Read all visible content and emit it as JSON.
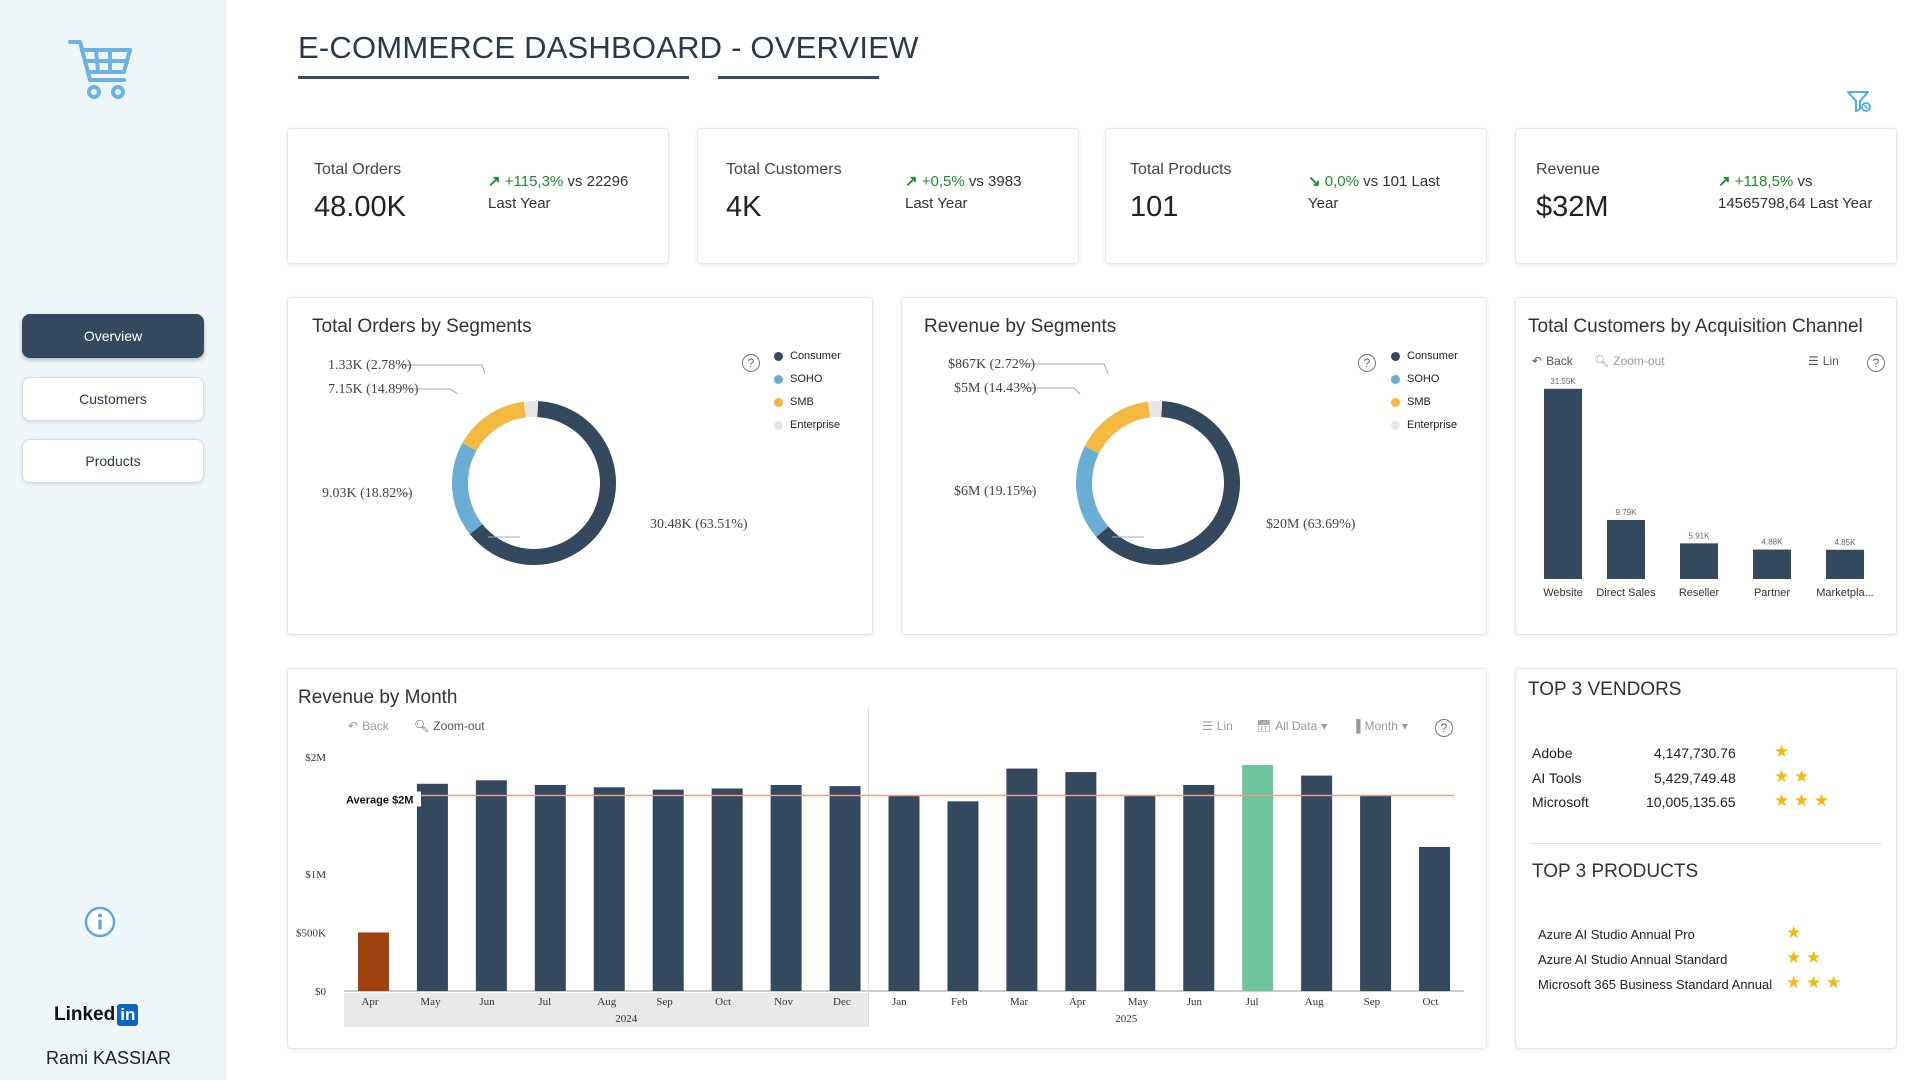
{
  "sidebar": {
    "nav": [
      {
        "label": "Overview",
        "active": true
      },
      {
        "label": "Customers",
        "active": false
      },
      {
        "label": "Products",
        "active": false
      }
    ],
    "linkedin_text": "Linked",
    "linkedin_in": "in",
    "author": "Rami KASSIAR"
  },
  "header": {
    "title": "E-COMMERCE DASHBOARD - OVERVIEW"
  },
  "kpis": [
    {
      "label": "Total Orders",
      "value": "48.00K",
      "delta": "+115,3%",
      "direction": "up",
      "compare_line1": "vs 22296",
      "compare_line2": "Last Year"
    },
    {
      "label": "Total Customers",
      "value": "4K",
      "delta": "+0,5%",
      "direction": "up",
      "compare_line1": "vs 3983",
      "compare_line2": "Last Year"
    },
    {
      "label": "Total Products",
      "value": "101",
      "delta": "0,0%",
      "direction": "down",
      "compare_line1": "vs 101 Last",
      "compare_line2": "Year"
    },
    {
      "label": "Revenue",
      "value": "$32M",
      "delta": "+118,5%",
      "direction": "up",
      "compare_line1": "vs",
      "compare_line2": "14565798,64 Last Year"
    }
  ],
  "orders_by_segment": {
    "title": "Total Orders by Segments",
    "legend": [
      "Consumer",
      "SOHO",
      "SMB",
      "Enterprise"
    ],
    "labels": {
      "consumer": "30.48K (63.51%)",
      "soho": "9.03K (18.82%)",
      "smb": "7.15K (14.89%)",
      "enterprise": "1.33K (2.78%)"
    }
  },
  "revenue_by_segment": {
    "title": "Revenue by Segments",
    "legend": [
      "Consumer",
      "SOHO",
      "SMB",
      "Enterprise"
    ],
    "labels": {
      "consumer": "$20M (63.69%)",
      "soho": "$6M (19.15%)",
      "smb": "$5M (14.43%)",
      "enterprise": "$867K (2.72%)"
    }
  },
  "acquisition": {
    "title": "Total Customers by Acquisition Channel",
    "back": "Back",
    "zoom_out": "Zoom-out",
    "lin": "Lin"
  },
  "revenue_month": {
    "title": "Revenue by Month",
    "back": "Back",
    "zoom_out": "Zoom-out",
    "lin": "Lin",
    "all_data": "All Data",
    "month": "Month",
    "average_label": "Average $2M",
    "year_2024": "2024",
    "year_2025": "2025"
  },
  "vendors": {
    "title": "TOP 3 VENDORS",
    "rows": [
      {
        "name": "Adobe",
        "value": "4,147,730.76",
        "stars": "★"
      },
      {
        "name": "AI Tools",
        "value": "5,429,749.48",
        "stars": "★ ★"
      },
      {
        "name": "Microsoft",
        "value": "10,005,135.65",
        "stars": "★ ★ ★"
      }
    ]
  },
  "products": {
    "title": "TOP 3 PRODUCTS",
    "rows": [
      {
        "name": "Azure AI Studio Annual Pro",
        "stars": "★"
      },
      {
        "name": "Azure AI Studio Annual Standard",
        "stars": "★ ★"
      },
      {
        "name": "Microsoft 365 Business Standard Annual",
        "stars": "★ ★ ★"
      }
    ]
  },
  "chart_data": [
    {
      "type": "pie",
      "title": "Total Orders by Segments",
      "categories": [
        "Consumer",
        "SOHO",
        "SMB",
        "Enterprise"
      ],
      "values": [
        30.48,
        9.03,
        7.15,
        1.33
      ],
      "percent": [
        63.51,
        18.82,
        14.89,
        2.78
      ],
      "colors": [
        "#34495e",
        "#6aaed6",
        "#f5b942",
        "#e6e6e6"
      ]
    },
    {
      "type": "pie",
      "title": "Revenue by Segments",
      "categories": [
        "Consumer",
        "SOHO",
        "SMB",
        "Enterprise"
      ],
      "values": [
        20,
        6,
        5,
        0.867
      ],
      "percent": [
        63.69,
        19.15,
        14.43,
        2.72
      ],
      "colors": [
        "#34495e",
        "#6aaed6",
        "#f5b942",
        "#e6e6e6"
      ]
    },
    {
      "type": "bar",
      "title": "Total Customers by Acquisition Channel",
      "categories": [
        "Website",
        "Direct Sales",
        "Reseller",
        "Partner",
        "Marketpla..."
      ],
      "values": [
        31.55,
        9.79,
        5.91,
        4.88,
        4.85
      ],
      "value_labels": [
        "31.55K",
        "9.79K",
        "5.91K",
        "4.88K",
        "4.85K"
      ],
      "ylim": [
        0,
        34
      ]
    },
    {
      "type": "bar",
      "title": "Revenue by Month",
      "categories": [
        "Apr",
        "May",
        "Jun",
        "Jul",
        "Aug",
        "Sep",
        "Oct",
        "Nov",
        "Dec",
        "Jan",
        "Feb",
        "Mar",
        "Apr",
        "May",
        "Jun",
        "Jul",
        "Aug",
        "Sep",
        "Oct"
      ],
      "years": [
        "2024",
        "2024",
        "2024",
        "2024",
        "2024",
        "2024",
        "2024",
        "2024",
        "2024",
        "2025",
        "2025",
        "2025",
        "2025",
        "2025",
        "2025",
        "2025",
        "2025",
        "2025",
        "2025"
      ],
      "values": [
        0.5,
        1.77,
        1.8,
        1.76,
        1.74,
        1.72,
        1.73,
        1.76,
        1.75,
        1.67,
        1.62,
        1.9,
        1.87,
        1.67,
        1.76,
        1.93,
        1.84,
        1.67,
        1.23
      ],
      "yticks": [
        "$0",
        "$500K",
        "$1M",
        "$2M"
      ],
      "ytick_values": [
        0,
        0.5,
        1,
        2
      ],
      "ylim": [
        0,
        2.05
      ],
      "average": 1.67,
      "highlight": {
        "min_index": 0,
        "max_index": 15
      },
      "colors": {
        "bar": "#34495e",
        "min": "#a0420f",
        "max": "#6cc39d",
        "avg_line": "#e8a08a"
      }
    }
  ]
}
